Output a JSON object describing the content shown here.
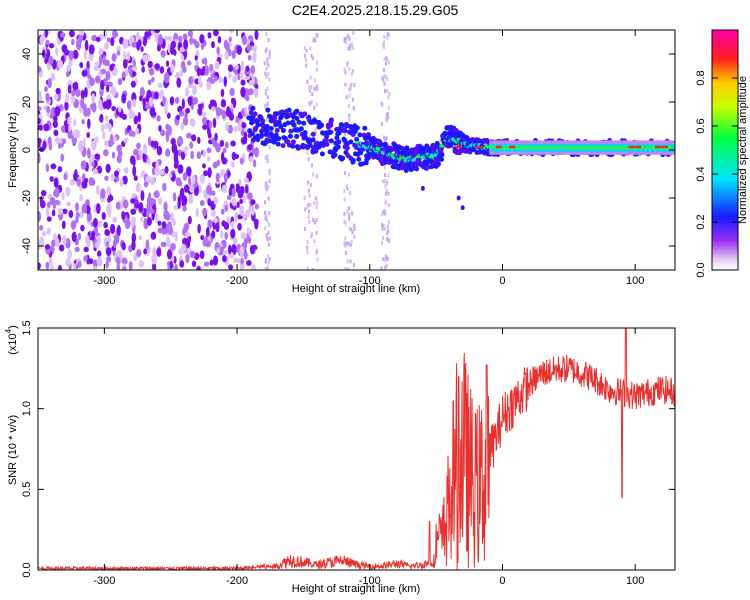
{
  "title": "C2E4.2025.218.15.29.G05",
  "chart_data": [
    {
      "type": "heatmap",
      "xlabel": "Height of straight line (km)",
      "ylabel": "Frequency (Hz)",
      "xlim": [
        -350,
        130
      ],
      "ylim": [
        -50,
        50
      ],
      "x_ticks": [
        -300,
        -200,
        -100,
        0,
        100
      ],
      "x_tick_labels": [
        "-300",
        "-200",
        "-100",
        "0",
        "100"
      ],
      "y_ticks": [
        -40,
        -20,
        0,
        20,
        40
      ],
      "y_tick_labels": [
        "-40",
        "-20",
        "0",
        "20",
        "40"
      ],
      "colorbar": {
        "label": "Normalized spectral amplitude",
        "range": [
          0,
          1
        ],
        "ticks": [
          0.0,
          0.2,
          0.4,
          0.6,
          0.8
        ],
        "tick_labels": [
          "0.0",
          "0.2",
          "0.4",
          "0.6",
          "0.8"
        ],
        "colormap": "rainbow (white-violet-blue-cyan-green-yellow-red-magenta)"
      },
      "noise_region_x": [
        -350,
        -185
      ],
      "ridge": {
        "x": [
          -190,
          -175,
          -160,
          -145,
          -130,
          -115,
          -100,
          -90,
          -80,
          -70,
          -60,
          -50,
          -42,
          -35,
          -25,
          -10,
          0,
          20,
          40,
          60,
          80,
          100,
          130
        ],
        "frequency": [
          12,
          10,
          9,
          7,
          5,
          3,
          1,
          -1,
          -3,
          -4,
          -3,
          -2,
          5,
          4,
          2,
          1,
          1,
          1,
          1,
          1,
          1,
          1,
          1
        ]
      },
      "grid": false
    },
    {
      "type": "line",
      "xlabel": "Height of straight line (km)",
      "ylabel": "SNR (10 * v/v)",
      "y_scale_label": "(x10",
      "y_scale_exponent": "4",
      "xlim": [
        -350,
        130
      ],
      "ylim": [
        0,
        1.5
      ],
      "x_ticks": [
        -300,
        -200,
        -100,
        0,
        100
      ],
      "x_tick_labels": [
        "-300",
        "-200",
        "-100",
        "0",
        "100"
      ],
      "y_ticks": [
        0.0,
        0.5,
        1.0,
        1.5
      ],
      "y_tick_labels": [
        "0.0",
        "0.5",
        "1.0",
        "1.5"
      ],
      "line_color": "#e8302f",
      "series_envelope": {
        "x": [
          -350,
          -200,
          -170,
          -160,
          -150,
          -140,
          -130,
          -120,
          -110,
          -100,
          -90,
          -80,
          -70,
          -60,
          -50,
          -45,
          -40,
          -35,
          -30,
          -25,
          -20,
          -15,
          -10,
          -5,
          0,
          10,
          20,
          30,
          40,
          50,
          60,
          70,
          80,
          90,
          100,
          110,
          120,
          130
        ],
        "y": [
          0.01,
          0.01,
          0.03,
          0.08,
          0.06,
          0.04,
          0.06,
          0.07,
          0.04,
          0.03,
          0.03,
          0.05,
          0.03,
          0.04,
          0.08,
          0.12,
          0.35,
          0.6,
          0.7,
          0.55,
          0.45,
          0.5,
          0.72,
          0.82,
          0.95,
          1.05,
          1.15,
          1.22,
          1.24,
          1.25,
          1.22,
          1.18,
          1.12,
          1.1,
          1.08,
          1.1,
          1.12,
          1.1
        ]
      },
      "spikes": [
        {
          "x": 93,
          "y": 1.5
        },
        {
          "x": 90,
          "y": 0.45
        },
        {
          "x": -33,
          "y": 1.2
        },
        {
          "x": -12,
          "y": 1.27
        },
        {
          "x": -55,
          "y": 0.3
        }
      ],
      "grid": false
    }
  ]
}
